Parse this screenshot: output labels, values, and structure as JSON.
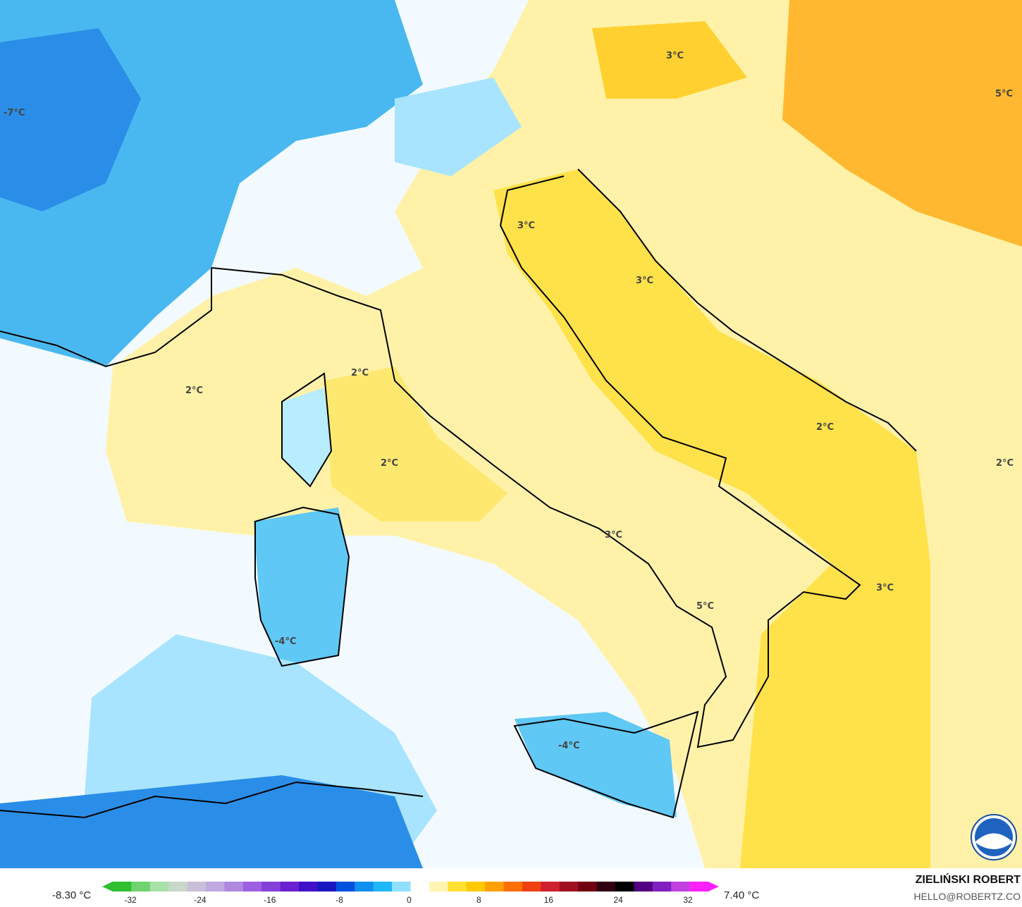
{
  "map": {
    "labels": [
      {
        "text": "-7°C"
      },
      {
        "text": "3°C"
      },
      {
        "text": "5°C"
      },
      {
        "text": "3°C"
      },
      {
        "text": "3°C"
      },
      {
        "text": "2°C"
      },
      {
        "text": "2°C"
      },
      {
        "text": "2°C"
      },
      {
        "text": "2°C"
      },
      {
        "text": "2°C"
      },
      {
        "text": "3°C"
      },
      {
        "text": "5°C"
      },
      {
        "text": "3°C"
      },
      {
        "text": "-4°C"
      },
      {
        "text": "-4°C"
      }
    ],
    "logo": "NOAA"
  },
  "legend": {
    "min": "-8.30 °C",
    "max": "7.40 °C",
    "ticks": [
      "-32",
      "-24",
      "-16",
      "-8",
      "0",
      "8",
      "16",
      "24",
      "32"
    ],
    "colors": [
      "#2fbf2f",
      "#6fd46f",
      "#a8e0a8",
      "#c8d8c8",
      "#c8c0d8",
      "#c0a8e0",
      "#b088e0",
      "#9c60e0",
      "#8440d8",
      "#6a20d0",
      "#4010c8",
      "#1818c0",
      "#0050e0",
      "#1090f0",
      "#20b8f8",
      "#90e0ff",
      "#ffffff",
      "#fff5b0",
      "#ffe030",
      "#ffc800",
      "#ffa000",
      "#ff7000",
      "#f04010",
      "#d02030",
      "#a01020",
      "#700010",
      "#300010",
      "#000000",
      "#500080",
      "#8020c0",
      "#c040e0",
      "#ff20ff"
    ]
  },
  "credit": {
    "author": "ZIELIŃSKI ROBERT",
    "email": "HELLO@ROBERTZ.CO"
  }
}
